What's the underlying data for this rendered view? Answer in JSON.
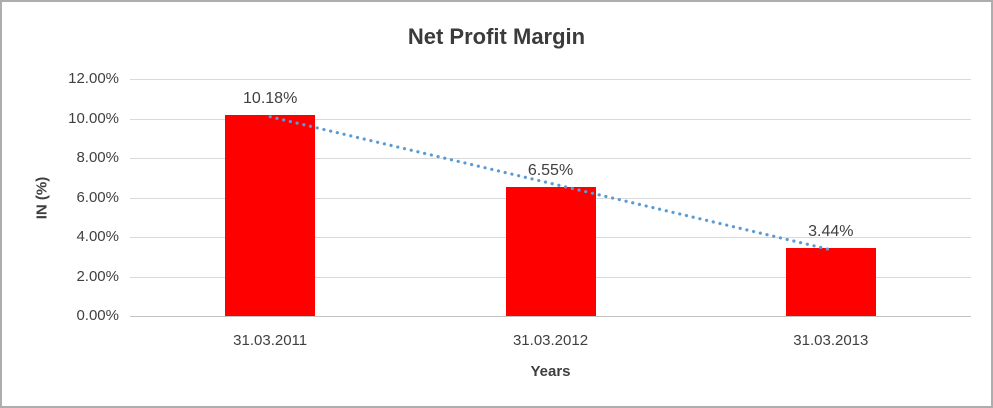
{
  "chart_data": {
    "type": "bar",
    "title": "Net Profit Margin",
    "xlabel": "Years",
    "ylabel": "IN (%)",
    "categories": [
      "31.03.2011",
      "31.03.2012",
      "31.03.2013"
    ],
    "values": [
      10.18,
      6.55,
      3.44
    ],
    "data_labels": [
      "10.18%",
      "6.55%",
      "3.44%"
    ],
    "ylim": [
      0,
      12
    ],
    "ytick_values": [
      0,
      2,
      4,
      6,
      8,
      10,
      12
    ],
    "ytick_labels": [
      "0.00%",
      "2.00%",
      "4.00%",
      "6.00%",
      "8.00%",
      "10.00%",
      "12.00%"
    ],
    "grid": true,
    "legend": "none",
    "bar_color": "#ff0000",
    "text_color": "#404040",
    "gridline_color": "#d9d9d9",
    "trendline": {
      "type": "linear",
      "style": "dotted",
      "color": "#5b9bd5",
      "start_value": 10.09,
      "end_value": 3.35
    }
  }
}
